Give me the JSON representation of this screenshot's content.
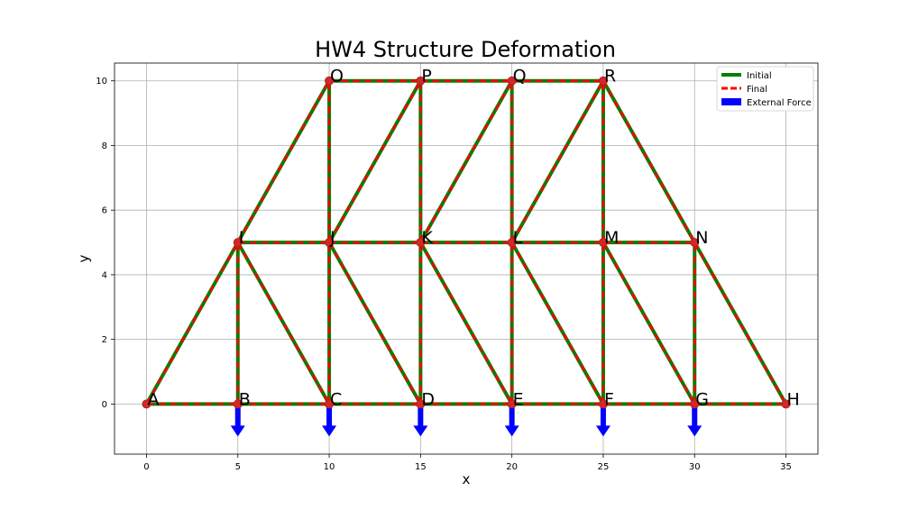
{
  "chart_data": {
    "type": "line",
    "title": "HW4 Structure Deformation",
    "xlabel": "x",
    "ylabel": "y",
    "xlim": [
      -1.75,
      36.75
    ],
    "ylim": [
      -1.55,
      10.55
    ],
    "xticks": [
      0,
      5,
      10,
      15,
      20,
      25,
      30,
      35
    ],
    "yticks": [
      0,
      2,
      4,
      6,
      8,
      10
    ],
    "grid": true,
    "legend_position": "top-right",
    "legend": [
      {
        "label": "Initial",
        "style": "solid-line",
        "color": "#008000"
      },
      {
        "label": "Final",
        "style": "dashed-line",
        "color": "#ff0000"
      },
      {
        "label": "External Force",
        "style": "patch",
        "color": "#0000ff"
      }
    ],
    "nodes": [
      {
        "name": "A",
        "x": 0,
        "y": 0
      },
      {
        "name": "B",
        "x": 5,
        "y": 0
      },
      {
        "name": "C",
        "x": 10,
        "y": 0
      },
      {
        "name": "D",
        "x": 15,
        "y": 0
      },
      {
        "name": "E",
        "x": 20,
        "y": 0
      },
      {
        "name": "F",
        "x": 25,
        "y": 0
      },
      {
        "name": "G",
        "x": 30,
        "y": 0
      },
      {
        "name": "H",
        "x": 35,
        "y": 0
      },
      {
        "name": "I",
        "x": 5,
        "y": 5
      },
      {
        "name": "J",
        "x": 10,
        "y": 5
      },
      {
        "name": "K",
        "x": 15,
        "y": 5
      },
      {
        "name": "L",
        "x": 20,
        "y": 5
      },
      {
        "name": "M",
        "x": 25,
        "y": 5
      },
      {
        "name": "N",
        "x": 30,
        "y": 5
      },
      {
        "name": "O",
        "x": 10,
        "y": 10
      },
      {
        "name": "P",
        "x": 15,
        "y": 10
      },
      {
        "name": "Q",
        "x": 20,
        "y": 10
      },
      {
        "name": "R",
        "x": 25,
        "y": 10
      }
    ],
    "members": [
      [
        "A",
        "B"
      ],
      [
        "B",
        "C"
      ],
      [
        "C",
        "D"
      ],
      [
        "D",
        "E"
      ],
      [
        "E",
        "F"
      ],
      [
        "F",
        "G"
      ],
      [
        "G",
        "H"
      ],
      [
        "I",
        "J"
      ],
      [
        "J",
        "K"
      ],
      [
        "K",
        "L"
      ],
      [
        "L",
        "M"
      ],
      [
        "M",
        "N"
      ],
      [
        "O",
        "P"
      ],
      [
        "P",
        "Q"
      ],
      [
        "Q",
        "R"
      ],
      [
        "A",
        "I"
      ],
      [
        "B",
        "I"
      ],
      [
        "I",
        "C"
      ],
      [
        "C",
        "J"
      ],
      [
        "J",
        "D"
      ],
      [
        "D",
        "K"
      ],
      [
        "K",
        "E"
      ],
      [
        "E",
        "L"
      ],
      [
        "L",
        "F"
      ],
      [
        "F",
        "M"
      ],
      [
        "M",
        "G"
      ],
      [
        "G",
        "N"
      ],
      [
        "N",
        "H"
      ],
      [
        "I",
        "O"
      ],
      [
        "J",
        "O"
      ],
      [
        "J",
        "P"
      ],
      [
        "K",
        "P"
      ],
      [
        "K",
        "Q"
      ],
      [
        "L",
        "Q"
      ],
      [
        "L",
        "R"
      ],
      [
        "M",
        "R"
      ],
      [
        "R",
        "N"
      ]
    ],
    "external_forces": [
      {
        "node": "B",
        "fx": 0,
        "fy": -1
      },
      {
        "node": "C",
        "fx": 0,
        "fy": -1
      },
      {
        "node": "D",
        "fx": 0,
        "fy": -1
      },
      {
        "node": "E",
        "fx": 0,
        "fy": -1
      },
      {
        "node": "F",
        "fx": 0,
        "fy": -1
      },
      {
        "node": "G",
        "fx": 0,
        "fy": -1
      }
    ]
  }
}
